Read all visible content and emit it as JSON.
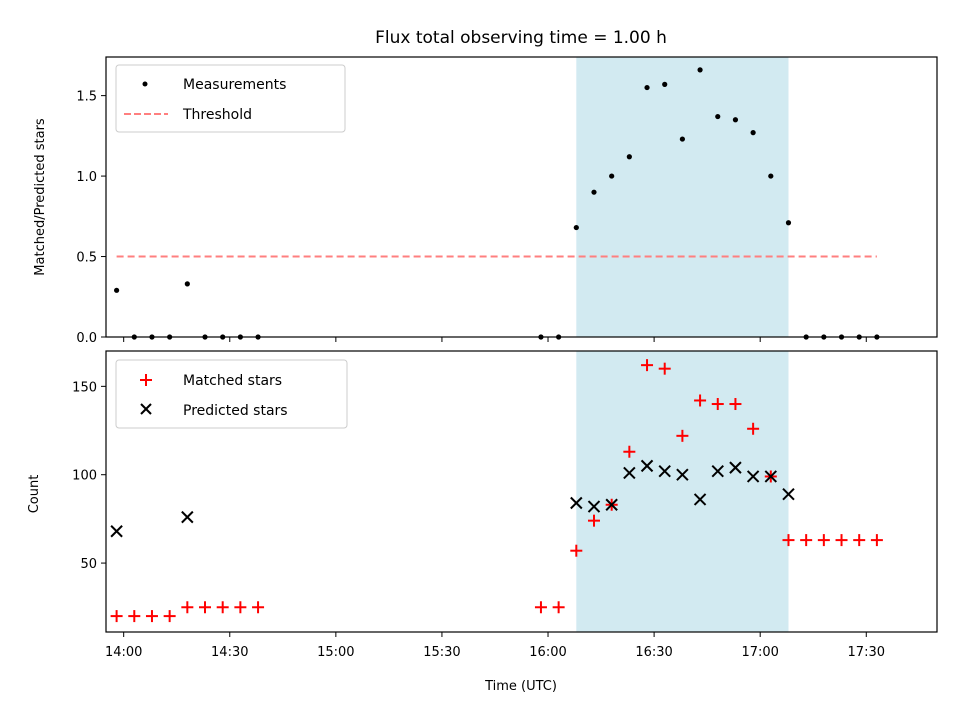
{
  "figure": {
    "title": "Flux total observing time = 1.00 h",
    "xlabel": "Time (UTC)"
  },
  "colors": {
    "measurements": "#000000",
    "threshold": "#ff7f7f",
    "matched": "#ff0000",
    "predicted": "#000000",
    "highlight": "#add8e6"
  },
  "chart_data": [
    {
      "type": "scatter",
      "ylabel": "Matched/Predicted stars",
      "xlim": [
        "13:55",
        "17:50"
      ],
      "ylim": [
        0,
        1.74
      ],
      "y_ticks": [
        0.0,
        0.5,
        1.0,
        1.5
      ],
      "highlight_span": [
        "16:08",
        "17:08"
      ],
      "legend": {
        "position": "upper-left",
        "entries": [
          "Measurements",
          "Threshold"
        ]
      },
      "series": [
        {
          "name": "Measurements",
          "marker": "dot",
          "x": [
            "13:58",
            "14:03",
            "14:08",
            "14:13",
            "14:18",
            "14:23",
            "14:28",
            "14:33",
            "14:38",
            "15:58",
            "16:03",
            "16:08",
            "16:13",
            "16:18",
            "16:23",
            "16:28",
            "16:33",
            "16:38",
            "16:43",
            "16:48",
            "16:53",
            "16:58",
            "17:03",
            "17:08",
            "17:13",
            "17:18",
            "17:23",
            "17:28",
            "17:33"
          ],
          "y": [
            0.29,
            0,
            0,
            0,
            0.33,
            0,
            0,
            0,
            0,
            0,
            0,
            0.68,
            0.9,
            1.0,
            1.12,
            1.55,
            1.57,
            1.23,
            1.66,
            1.37,
            1.35,
            1.27,
            1.0,
            0.71,
            0,
            0,
            0,
            0,
            0
          ]
        },
        {
          "name": "Threshold",
          "style": "dashed",
          "x": [
            "13:58",
            "17:33"
          ],
          "y": [
            0.5,
            0.5
          ]
        }
      ]
    },
    {
      "type": "scatter",
      "ylabel": "Count",
      "xlim": [
        "13:55",
        "17:50"
      ],
      "ylim": [
        11,
        170
      ],
      "y_ticks": [
        50,
        100,
        150
      ],
      "x_ticks": [
        "14:00",
        "14:30",
        "15:00",
        "15:30",
        "16:00",
        "16:30",
        "17:00",
        "17:30"
      ],
      "highlight_span": [
        "16:08",
        "17:08"
      ],
      "legend": {
        "position": "upper-left",
        "entries": [
          "Matched stars",
          "Predicted stars"
        ]
      },
      "series": [
        {
          "name": "Matched stars",
          "marker": "plus",
          "x": [
            "13:58",
            "14:03",
            "14:08",
            "14:13",
            "14:18",
            "14:23",
            "14:28",
            "14:33",
            "14:38",
            "15:58",
            "16:03",
            "16:08",
            "16:13",
            "16:18",
            "16:23",
            "16:28",
            "16:33",
            "16:38",
            "16:43",
            "16:48",
            "16:53",
            "16:58",
            "17:03",
            "17:08",
            "17:13",
            "17:18",
            "17:23",
            "17:28",
            "17:33"
          ],
          "y": [
            20,
            20,
            20,
            20,
            25,
            25,
            25,
            25,
            25,
            25,
            25,
            57,
            74,
            83,
            113,
            162,
            160,
            122,
            142,
            140,
            140,
            126,
            99,
            63,
            63,
            63,
            63,
            63,
            63
          ]
        },
        {
          "name": "Predicted stars",
          "marker": "x",
          "x": [
            "13:58",
            "14:18",
            "16:08",
            "16:13",
            "16:18",
            "16:23",
            "16:28",
            "16:33",
            "16:38",
            "16:43",
            "16:48",
            "16:53",
            "16:58",
            "17:03",
            "17:08"
          ],
          "y": [
            68,
            76,
            84,
            82,
            83,
            101,
            105,
            102,
            100,
            86,
            102,
            104,
            99,
            99,
            89
          ]
        }
      ]
    }
  ]
}
